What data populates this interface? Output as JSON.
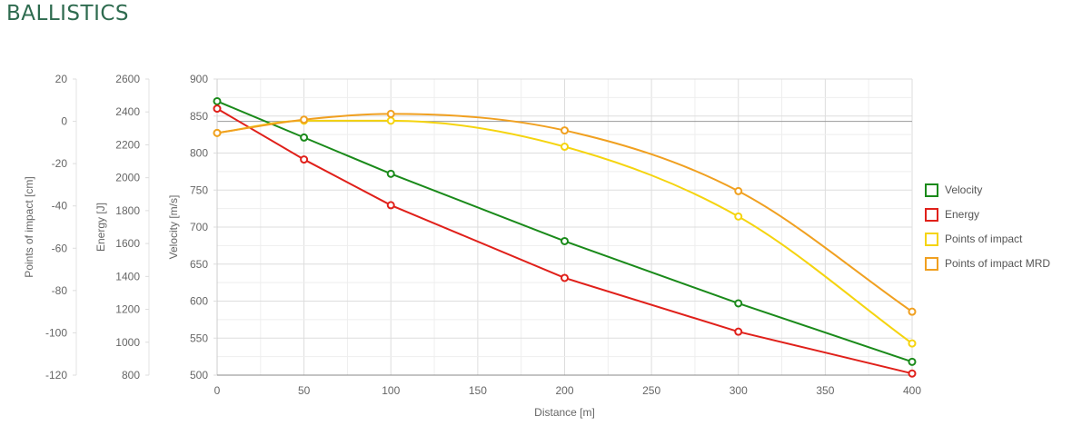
{
  "page": {
    "title": "BALLISTICS"
  },
  "chart_data": {
    "type": "line",
    "xlabel": "Distance [m]",
    "x": [
      0,
      50,
      100,
      200,
      300,
      400
    ],
    "xlim": [
      0,
      400
    ],
    "xticks": [
      0,
      50,
      100,
      150,
      200,
      250,
      300,
      350,
      400
    ],
    "axes": {
      "velocity": {
        "label": "Velocity [m/s]",
        "range": [
          500,
          900
        ],
        "ticks": [
          500,
          550,
          600,
          650,
          700,
          750,
          800,
          850,
          900
        ]
      },
      "energy": {
        "label": "Energy [J]",
        "range": [
          800,
          2600
        ],
        "ticks": [
          800,
          1000,
          1200,
          1400,
          1600,
          1800,
          2000,
          2200,
          2400,
          2600
        ]
      },
      "impact": {
        "label": "Points of impact [cm]",
        "range": [
          -120,
          20
        ],
        "ticks": [
          -120,
          -100,
          -80,
          -60,
          -40,
          -20,
          0,
          20
        ]
      }
    },
    "series": [
      {
        "name": "Velocity",
        "axis": "velocity",
        "color": "#1a8a1a",
        "values": [
          870,
          821,
          772,
          681,
          597,
          518
        ]
      },
      {
        "name": "Energy",
        "axis": "energy",
        "color": "#e0201a",
        "values": [
          2420,
          2111,
          1833,
          1391,
          1064,
          810
        ]
      },
      {
        "name": "Points of impact",
        "axis": "impact",
        "color": "#f5d40f",
        "values": [
          -5.5,
          0.3,
          0.3,
          -12,
          -45,
          -105
        ]
      },
      {
        "name": "Points of impact MRD",
        "axis": "impact",
        "color": "#f0a020",
        "values": [
          -5.5,
          0.8,
          3.5,
          -4.3,
          -33,
          -90
        ]
      }
    ],
    "grid": true,
    "legend_position": "right"
  }
}
